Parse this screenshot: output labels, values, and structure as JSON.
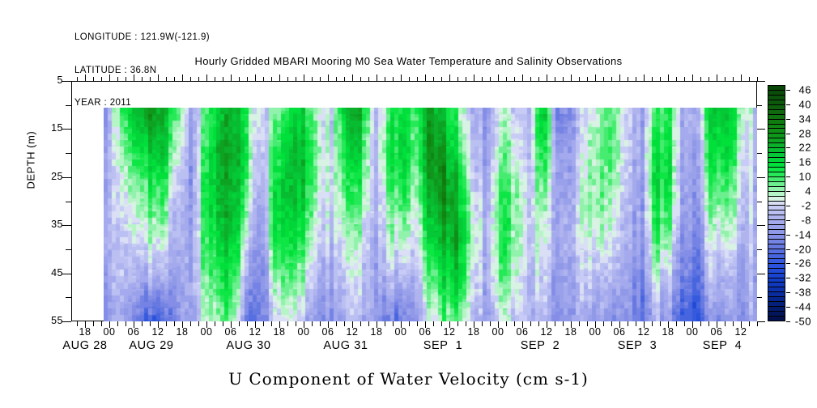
{
  "header": {
    "lines": [
      "LONGITUDE : 121.9W(-121.9)",
      "LATITUDE : 36.8N",
      "YEAR : 2011"
    ]
  },
  "title": "Hourly Gridded MBARI Mooring M0 Sea Water Temperature and Salinity Observations",
  "bottom_title": "U Component of Water Velocity (cm s-1)",
  "y_axis": {
    "label": "DEPTH (m)",
    "tick_labels": [
      "5",
      "15",
      "25",
      "35",
      "45",
      "55"
    ],
    "tick_values": [
      5,
      15,
      25,
      35,
      45,
      55
    ],
    "minor_tick_values": [
      10,
      20,
      30,
      40,
      50
    ],
    "range": [
      5,
      55
    ]
  },
  "x_axis": {
    "hour_labels": [
      "18",
      "00",
      "06",
      "12",
      "18",
      "00",
      "06",
      "12",
      "18",
      "00",
      "06",
      "12",
      "18",
      "00",
      "06",
      "12",
      "18",
      "00",
      "06",
      "12",
      "18",
      "00",
      "06",
      "12",
      "18",
      "00",
      "06",
      "12"
    ],
    "date_labels": [
      "AUG 28",
      "AUG 29",
      "AUG 30",
      "AUG 31",
      "SEP  1",
      "SEP  2",
      "SEP  3",
      "SEP  4"
    ],
    "minor_tick_step_hours": 2,
    "major_tick_step_hours": 6
  },
  "colorbar": {
    "max": 48,
    "min": -50,
    "segment_step": 2,
    "labels": [
      "46",
      "40",
      "34",
      "28",
      "22",
      "16",
      "10",
      "4",
      "-2",
      "-8",
      "-14",
      "-20",
      "-26",
      "-32",
      "-38",
      "-44",
      "-50"
    ],
    "label_values": [
      46,
      40,
      34,
      28,
      22,
      16,
      10,
      4,
      -2,
      -8,
      -14,
      -20,
      -26,
      -32,
      -38,
      -44,
      -50
    ],
    "palette_anchors": [
      [
        -50,
        "#020f45"
      ],
      [
        -44,
        "#041d72"
      ],
      [
        -38,
        "#0a2fa8"
      ],
      [
        -32,
        "#1440cf"
      ],
      [
        -26,
        "#2e55dd"
      ],
      [
        -20,
        "#5f74e0"
      ],
      [
        -14,
        "#8b93e7"
      ],
      [
        -8,
        "#a9aeee"
      ],
      [
        -2,
        "#cdd1f6"
      ],
      [
        0,
        "#e6edf3"
      ],
      [
        2,
        "#c9f7d2"
      ],
      [
        6,
        "#7df09e"
      ],
      [
        10,
        "#33ea60"
      ],
      [
        14,
        "#00e53c"
      ],
      [
        20,
        "#06c235"
      ],
      [
        26,
        "#0f9c1e"
      ],
      [
        32,
        "#10800f"
      ],
      [
        40,
        "#0c5c0c"
      ],
      [
        48,
        "#084408"
      ]
    ]
  },
  "chart_data": {
    "type": "heatmap",
    "title": "Hourly Gridded MBARI Mooring M0 Sea Water Temperature and Salinity Observations",
    "variable": "U Component of Water Velocity",
    "units": "cm s-1",
    "xlabel_dates": [
      "AUG 28",
      "AUG 29",
      "AUG 30",
      "AUG 31",
      "SEP 1",
      "SEP 2",
      "SEP 3",
      "SEP 4"
    ],
    "year": "2011",
    "time_coverage": "hourly, AUG 28 ~22:00 through SEP 4 ~16:00",
    "hours_total": 162,
    "ylabel": "DEPTH (m)",
    "depth_range_with_data": [
      10,
      55
    ],
    "axis_depth_range": [
      5,
      55
    ],
    "value_range": [
      -50,
      48
    ],
    "depths": [
      10,
      19,
      28,
      37,
      46,
      55
    ],
    "values": [
      [
        -8,
        -8,
        -6,
        -6,
        -8,
        -10
      ],
      [
        5,
        0,
        -4,
        -6,
        -8,
        -12
      ],
      [
        22,
        14,
        6,
        0,
        -6,
        -14
      ],
      [
        28,
        20,
        10,
        4,
        -8,
        -22
      ],
      [
        24,
        18,
        10,
        2,
        -10,
        -26
      ],
      [
        8,
        2,
        -6,
        -10,
        -12,
        -16
      ],
      [
        -10,
        -12,
        -12,
        -10,
        -8,
        -10
      ],
      [
        6,
        10,
        12,
        10,
        6,
        0
      ],
      [
        18,
        22,
        22,
        18,
        12,
        6
      ],
      [
        22,
        26,
        24,
        20,
        14,
        8
      ],
      [
        14,
        16,
        12,
        4,
        -6,
        -14
      ],
      [
        -6,
        -8,
        -12,
        -16,
        -18,
        -20
      ],
      [
        4,
        8,
        14,
        12,
        4,
        -4
      ],
      [
        12,
        18,
        20,
        16,
        8,
        0
      ],
      [
        16,
        20,
        18,
        12,
        4,
        -6
      ],
      [
        4,
        6,
        4,
        0,
        -6,
        -12
      ],
      [
        -4,
        -2,
        -2,
        -6,
        -10,
        -14
      ],
      [
        20,
        14,
        8,
        2,
        -4,
        -8
      ],
      [
        24,
        18,
        10,
        4,
        -2,
        -6
      ],
      [
        -8,
        -10,
        -10,
        -12,
        -12,
        -14
      ],
      [
        10,
        14,
        10,
        4,
        -4,
        -16
      ],
      [
        14,
        16,
        12,
        2,
        -8,
        -20
      ],
      [
        8,
        6,
        2,
        -2,
        -8,
        -14
      ],
      [
        26,
        30,
        24,
        16,
        8,
        0
      ],
      [
        18,
        26,
        30,
        24,
        14,
        6
      ],
      [
        6,
        12,
        20,
        24,
        18,
        8
      ],
      [
        -6,
        -4,
        0,
        4,
        2,
        -4
      ],
      [
        -12,
        -10,
        -8,
        -6,
        -8,
        -12
      ],
      [
        2,
        8,
        12,
        14,
        10,
        2
      ],
      [
        -2,
        2,
        6,
        6,
        2,
        -4
      ],
      [
        -8,
        -6,
        -4,
        -4,
        -6,
        -8
      ],
      [
        24,
        16,
        8,
        2,
        -2,
        -6
      ],
      [
        -18,
        -12,
        -10,
        -10,
        -12,
        -14
      ],
      [
        -14,
        -12,
        -10,
        -8,
        -10,
        -12
      ],
      [
        0,
        4,
        6,
        4,
        -2,
        -8
      ],
      [
        6,
        8,
        8,
        4,
        -4,
        -10
      ],
      [
        10,
        10,
        6,
        0,
        -6,
        -12
      ],
      [
        -4,
        -4,
        -6,
        -8,
        -10,
        -14
      ],
      [
        -10,
        -10,
        -12,
        -14,
        -18,
        -22
      ],
      [
        8,
        14,
        16,
        10,
        0,
        -8
      ],
      [
        12,
        16,
        14,
        6,
        -4,
        -12
      ],
      [
        -10,
        -12,
        -12,
        -14,
        -18,
        -24
      ],
      [
        -8,
        -10,
        -12,
        -16,
        -22,
        -28
      ],
      [
        20,
        16,
        10,
        2,
        -6,
        -14
      ],
      [
        22,
        18,
        12,
        4,
        -4,
        -10
      ],
      [
        8,
        4,
        0,
        -4,
        -8,
        -12
      ],
      [
        -4,
        -4,
        -6,
        -6,
        -8,
        -10
      ]
    ]
  }
}
